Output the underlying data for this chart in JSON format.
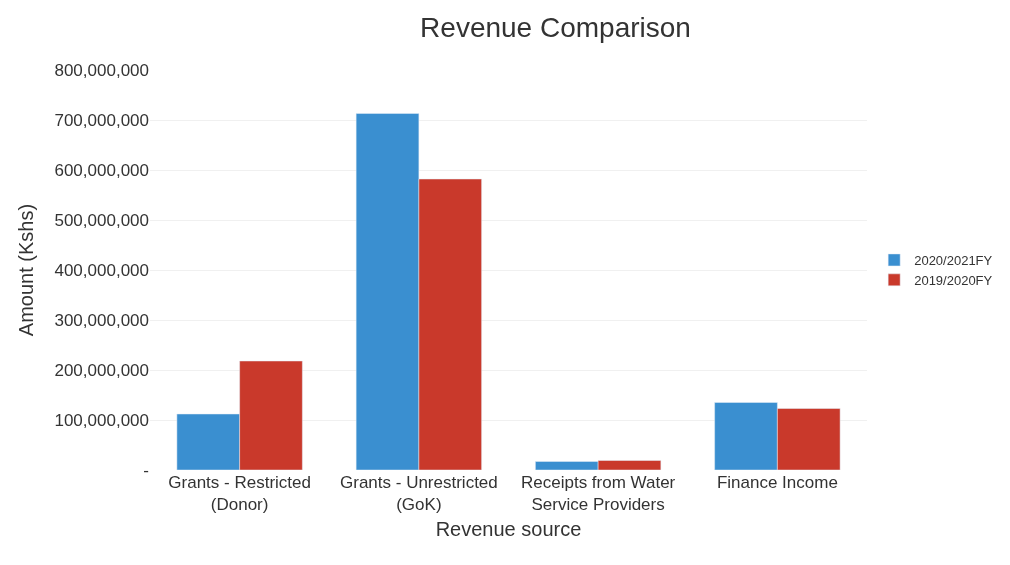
{
  "chart_data": {
    "type": "bar",
    "title": "Revenue Comparison",
    "xlabel": "Revenue source",
    "ylabel": "Amount (Kshs)",
    "categories": [
      "Grants - Restricted (Donor)",
      "Grants - Unrestricted (GoK)",
      "Receipts from Water Service Providers",
      "Finance Income"
    ],
    "series": [
      {
        "name": "2020/2021FY",
        "color": "#3a8fd0",
        "values": [
          112000000,
          713000000,
          17000000,
          135000000
        ]
      },
      {
        "name": "2019/2020FY",
        "color": "#c9392b",
        "values": [
          218000000,
          582000000,
          19000000,
          123000000
        ]
      }
    ],
    "ylim": [
      0,
      800000000
    ],
    "yticks": [
      {
        "value": 0,
        "label": "-"
      },
      {
        "value": 100000000,
        "label": "100,000,000"
      },
      {
        "value": 200000000,
        "label": "200,000,000"
      },
      {
        "value": 300000000,
        "label": "300,000,000"
      },
      {
        "value": 400000000,
        "label": "400,000,000"
      },
      {
        "value": 500000000,
        "label": "500,000,000"
      },
      {
        "value": 600000000,
        "label": "600,000,000"
      },
      {
        "value": 700000000,
        "label": "700,000,000"
      },
      {
        "value": 800000000,
        "label": "800,000,000"
      }
    ],
    "grid": "y",
    "legend": "right"
  }
}
